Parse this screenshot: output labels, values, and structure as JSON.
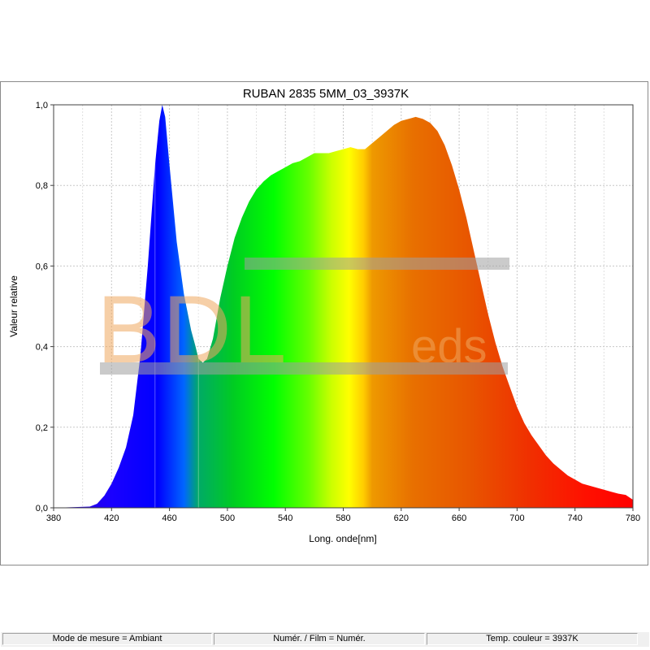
{
  "chart_data": {
    "type": "area",
    "title": "RUBAN 2835 5MM_03_3937K",
    "xlabel": "Long. onde[nm]",
    "ylabel": "Valeur relative",
    "xlim": [
      380,
      780
    ],
    "ylim": [
      0,
      1.0
    ],
    "x_ticks": [
      "380",
      "420",
      "460",
      "500",
      "540",
      "580",
      "620",
      "660",
      "700",
      "740",
      "780"
    ],
    "y_ticks": [
      "0,0",
      "0,2",
      "0,4",
      "0,6",
      "0,8",
      "1,0"
    ],
    "grid": true,
    "fill": "visible-spectrum colors by wavelength",
    "series": [
      {
        "x": [
          380,
          405,
          410,
          415,
          420,
          425,
          430,
          435,
          440,
          445,
          450,
          453,
          455,
          457,
          460,
          465,
          470,
          475,
          478,
          480,
          483,
          486,
          490,
          495,
          500,
          505,
          510,
          515,
          520,
          525,
          530,
          535,
          540,
          545,
          550,
          555,
          560,
          565,
          570,
          575,
          580,
          585,
          590,
          595,
          600,
          605,
          610,
          615,
          620,
          625,
          630,
          635,
          640,
          645,
          650,
          655,
          660,
          665,
          670,
          675,
          680,
          685,
          690,
          695,
          700,
          705,
          710,
          715,
          720,
          725,
          730,
          735,
          740,
          745,
          750,
          755,
          760,
          765,
          770,
          775,
          780
        ],
        "values": [
          0,
          0.003,
          0.01,
          0.03,
          0.06,
          0.1,
          0.15,
          0.23,
          0.38,
          0.6,
          0.85,
          0.96,
          1.0,
          0.97,
          0.85,
          0.66,
          0.53,
          0.44,
          0.4,
          0.37,
          0.36,
          0.37,
          0.42,
          0.52,
          0.6,
          0.67,
          0.72,
          0.76,
          0.79,
          0.81,
          0.825,
          0.835,
          0.845,
          0.855,
          0.86,
          0.87,
          0.88,
          0.88,
          0.88,
          0.885,
          0.89,
          0.895,
          0.89,
          0.89,
          0.905,
          0.92,
          0.935,
          0.95,
          0.96,
          0.965,
          0.97,
          0.965,
          0.955,
          0.935,
          0.9,
          0.85,
          0.79,
          0.72,
          0.64,
          0.56,
          0.48,
          0.41,
          0.35,
          0.3,
          0.25,
          0.21,
          0.18,
          0.155,
          0.13,
          0.11,
          0.095,
          0.08,
          0.07,
          0.06,
          0.055,
          0.05,
          0.045,
          0.04,
          0.035,
          0.032,
          0.02
        ]
      }
    ]
  },
  "watermark": {
    "text": "BDLeds"
  },
  "statusbar": {
    "mode": "Mode de mesure = Ambiant",
    "numer": "Numér. / Film = Numér.",
    "temp": "Temp. couleur = 3937K"
  }
}
